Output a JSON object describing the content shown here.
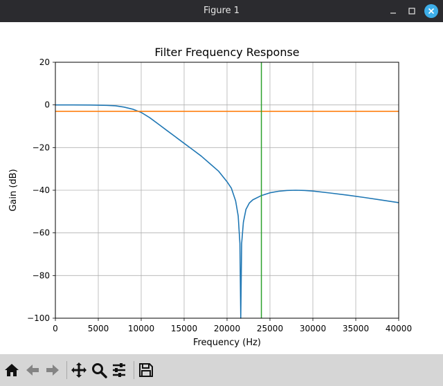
{
  "window": {
    "title": "Figure 1"
  },
  "toolbar": {
    "buttons": [
      {
        "name": "home-icon",
        "enabled": true
      },
      {
        "name": "back-icon",
        "enabled": false
      },
      {
        "name": "forward-icon",
        "enabled": false
      },
      {
        "name": "pan-icon",
        "enabled": true
      },
      {
        "name": "zoom-icon",
        "enabled": true
      },
      {
        "name": "configure-subplots-icon",
        "enabled": true
      },
      {
        "name": "save-icon",
        "enabled": true
      }
    ]
  },
  "chart_data": {
    "type": "line",
    "title": "Filter Frequency Response",
    "xlabel": "Frequency (Hz)",
    "ylabel": "Gain (dB)",
    "xlim": [
      0,
      40000
    ],
    "ylim": [
      -100,
      20
    ],
    "xticks": [
      0,
      5000,
      10000,
      15000,
      20000,
      25000,
      30000,
      35000,
      40000
    ],
    "yticks": [
      20,
      0,
      -20,
      -40,
      -60,
      -80,
      -100
    ],
    "xtick_labels": [
      "0",
      "5000",
      "10000",
      "15000",
      "20000",
      "25000",
      "30000",
      "35000",
      "40000"
    ],
    "ytick_labels": [
      "20",
      "0",
      "−20",
      "−40",
      "−60",
      "−80",
      "−100"
    ],
    "grid": true,
    "series": [
      {
        "color": "#1f77b4",
        "points": [
          [
            0,
            0
          ],
          [
            2000,
            0
          ],
          [
            4000,
            -0.05
          ],
          [
            6000,
            -0.2
          ],
          [
            7000,
            -0.4
          ],
          [
            8000,
            -1
          ],
          [
            9000,
            -2
          ],
          [
            10000,
            -3.5
          ],
          [
            11000,
            -6
          ],
          [
            12000,
            -9
          ],
          [
            13000,
            -12
          ],
          [
            14000,
            -15
          ],
          [
            15000,
            -18
          ],
          [
            16000,
            -21
          ],
          [
            17000,
            -24
          ],
          [
            18000,
            -27.5
          ],
          [
            19000,
            -31
          ],
          [
            20000,
            -36
          ],
          [
            20500,
            -39
          ],
          [
            21000,
            -45
          ],
          [
            21300,
            -52
          ],
          [
            21500,
            -65
          ],
          [
            21600,
            -100
          ],
          [
            21700,
            -65
          ],
          [
            21900,
            -55
          ],
          [
            22200,
            -49
          ],
          [
            22600,
            -46
          ],
          [
            23000,
            -44.5
          ],
          [
            24000,
            -42.5
          ],
          [
            25000,
            -41.2
          ],
          [
            26000,
            -40.5
          ],
          [
            27000,
            -40.1
          ],
          [
            28000,
            -40
          ],
          [
            29000,
            -40.1
          ],
          [
            30000,
            -40.4
          ],
          [
            32000,
            -41.3
          ],
          [
            34000,
            -42.3
          ],
          [
            36000,
            -43.4
          ],
          [
            38000,
            -44.6
          ],
          [
            40000,
            -45.8
          ]
        ]
      },
      {
        "color": "#ff7f0e",
        "points": [
          [
            0,
            -3
          ],
          [
            40000,
            -3
          ]
        ]
      },
      {
        "color": "#2ca02c",
        "vertical_x": 24000
      }
    ]
  }
}
